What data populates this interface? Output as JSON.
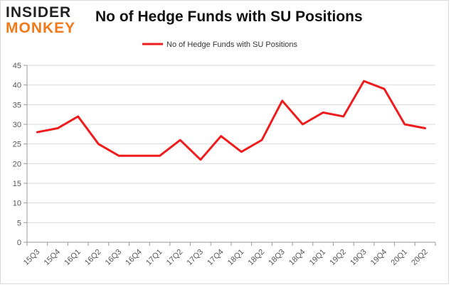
{
  "brand": {
    "logo_top": "INSIDER",
    "logo_bottom": "MONKEY"
  },
  "colors": {
    "series": "#ee1c1c",
    "grid": "#d9d9d9",
    "logo_accent": "#f07a1a"
  },
  "chart_data": {
    "type": "line",
    "title": "No of Hedge Funds with SU Positions",
    "xlabel": "",
    "ylabel": "",
    "ylim": [
      0,
      45
    ],
    "yticks": [
      0,
      5,
      10,
      15,
      20,
      25,
      30,
      35,
      40,
      45
    ],
    "grid": true,
    "legend_position": "top-center",
    "categories": [
      "15Q3",
      "15Q4",
      "16Q1",
      "16Q2",
      "16Q3",
      "16Q4",
      "17Q1",
      "17Q2",
      "17Q3",
      "17Q4",
      "18Q1",
      "18Q2",
      "18Q3",
      "18Q4",
      "19Q1",
      "19Q2",
      "19Q3",
      "19Q4",
      "20Q1",
      "20Q2"
    ],
    "series": [
      {
        "name": "No of Hedge Funds with SU Positions",
        "values": [
          28,
          29,
          32,
          25,
          22,
          22,
          22,
          26,
          21,
          27,
          23,
          26,
          36,
          30,
          33,
          32,
          41,
          39,
          30,
          29
        ]
      }
    ]
  }
}
